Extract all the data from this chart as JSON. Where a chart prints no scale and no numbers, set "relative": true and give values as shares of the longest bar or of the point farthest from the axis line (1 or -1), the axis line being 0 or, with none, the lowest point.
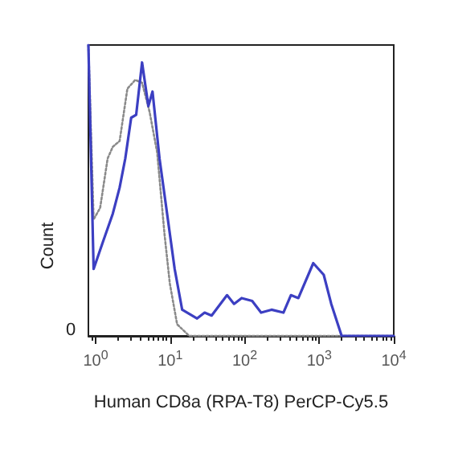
{
  "chart_data": {
    "type": "line",
    "relative": true,
    "xlabel": "Human CD8a (RPA-T8) PerCP-Cy5.5",
    "ylabel": "Count",
    "annotations": [
      "0"
    ],
    "log": "x",
    "xlim": [
      0.8,
      10000
    ],
    "xticks": [
      {
        "value": 1,
        "label": "10$^{0}$"
      },
      {
        "value": 10,
        "label": "10$^{1}$"
      },
      {
        "value": 100,
        "label": "10$^{2}$"
      },
      {
        "value": 1000,
        "label": "10$^{3}$"
      },
      {
        "value": 10000,
        "label": "10$^{4}$"
      }
    ],
    "grid": false,
    "marker": "none",
    "series": [
      {
        "color": "#3c3fc2",
        "line_style": "solid",
        "x": [
          0.8,
          0.94,
          1.24,
          1.7,
          2.1,
          2.5,
          3.0,
          3.5,
          4.2,
          5.1,
          5.8,
          7.2,
          9.1,
          11.5,
          14.5,
          23,
          29,
          36,
          58,
          72,
          91,
          126,
          166,
          229,
          331,
          417,
          525,
          832,
          1150,
          1450,
          2000,
          10000
        ],
        "values": [
          1,
          0.23,
          0.32,
          0.42,
          0.51,
          0.61,
          0.75,
          0.76,
          0.94,
          0.79,
          0.84,
          0.61,
          0.42,
          0.23,
          0.09,
          0.06,
          0.08,
          0.07,
          0.14,
          0.11,
          0.13,
          0.12,
          0.08,
          0.09,
          0.08,
          0.14,
          0.13,
          0.25,
          0.21,
          0.11,
          0,
          0
        ]
      },
      {
        "color": "#8a8a8a",
        "line_style": "dotted",
        "x": [
          0.8,
          0.94,
          1.15,
          1.45,
          1.7,
          2.1,
          2.67,
          3.4,
          4.2,
          5.3,
          6.7,
          8.4,
          9.9,
          12.4,
          18,
          10000
        ],
        "values": [
          1,
          0.4,
          0.44,
          0.61,
          0.65,
          0.67,
          0.85,
          0.88,
          0.87,
          0.77,
          0.63,
          0.35,
          0.18,
          0.04,
          0,
          0
        ]
      }
    ]
  }
}
